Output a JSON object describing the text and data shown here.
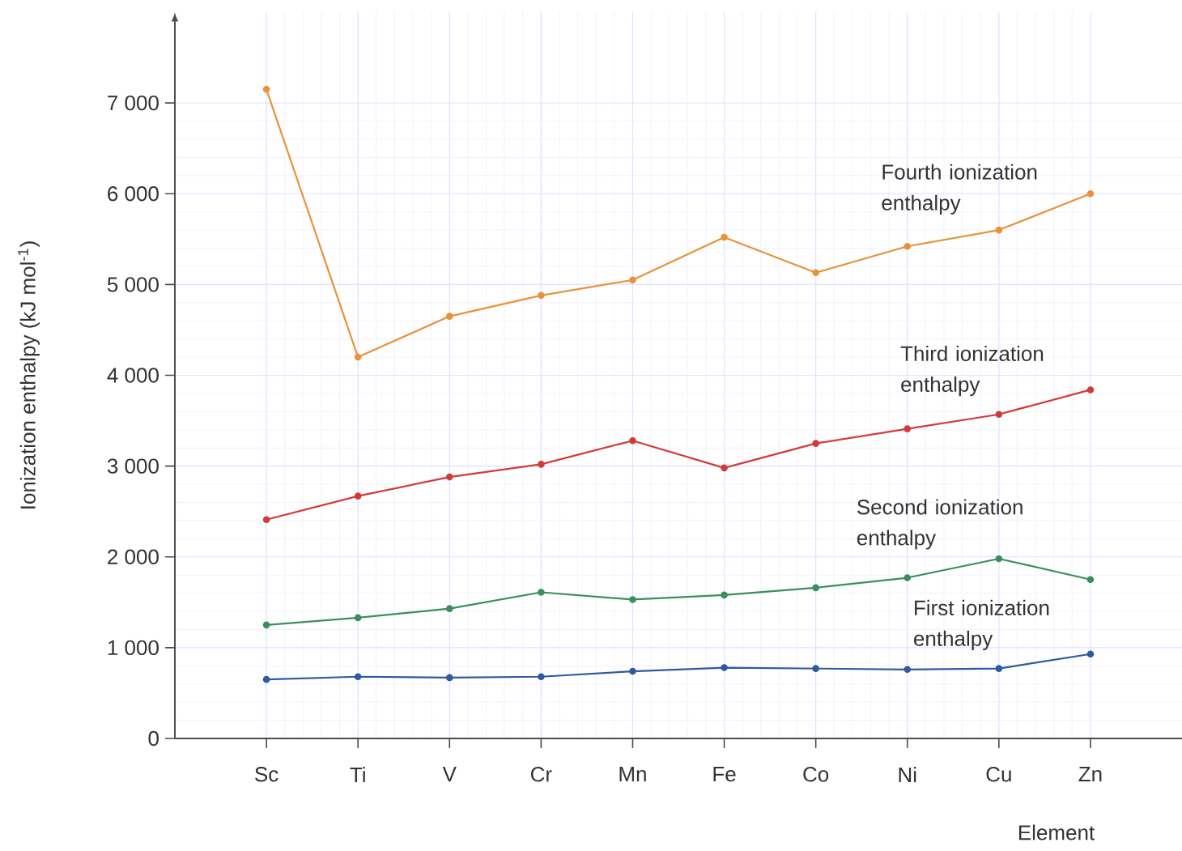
{
  "chart_data": {
    "type": "line",
    "xlabel": "Element",
    "ylabel": "Ionization enthalpy (kJ mol$^{-1}$)",
    "categories": [
      "Sc",
      "Ti",
      "V",
      "Cr",
      "Mn",
      "Fe",
      "Co",
      "Ni",
      "Cu",
      "Zn"
    ],
    "series": [
      {
        "name": "First ionization enthalpy",
        "color": "#2f5aa0",
        "values": [
          650,
          680,
          670,
          680,
          740,
          780,
          770,
          760,
          770,
          930
        ]
      },
      {
        "name": "Second ionization enthalpy",
        "color": "#3a8f5a",
        "values": [
          1250,
          1330,
          1430,
          1610,
          1530,
          1580,
          1660,
          1770,
          1980,
          1750
        ]
      },
      {
        "name": "Third ionization enthalpy",
        "color": "#d43a3a",
        "values": [
          2410,
          2670,
          2880,
          3020,
          3280,
          2980,
          3250,
          3410,
          3570,
          3840
        ]
      },
      {
        "name": "Fourth ionization enthalpy",
        "color": "#e8923a",
        "values": [
          7150,
          4200,
          4650,
          4880,
          5050,
          5520,
          5130,
          5420,
          5600,
          6000
        ]
      }
    ],
    "ylim": [
      0,
      8000
    ],
    "yticks": [
      0,
      {
        "value": 1000,
        "label": "1 000"
      },
      {
        "value": 2000,
        "label": "2 000"
      },
      {
        "value": 3000,
        "label": "3 000"
      },
      {
        "value": 4000,
        "label": "4 000"
      },
      {
        "value": 5000,
        "label": "5 000"
      },
      {
        "value": 6000,
        "label": "6 000"
      },
      {
        "value": 7000,
        "label": "7 000"
      }
    ],
    "grid": true,
    "marker": "circle",
    "line_style": "solid"
  }
}
